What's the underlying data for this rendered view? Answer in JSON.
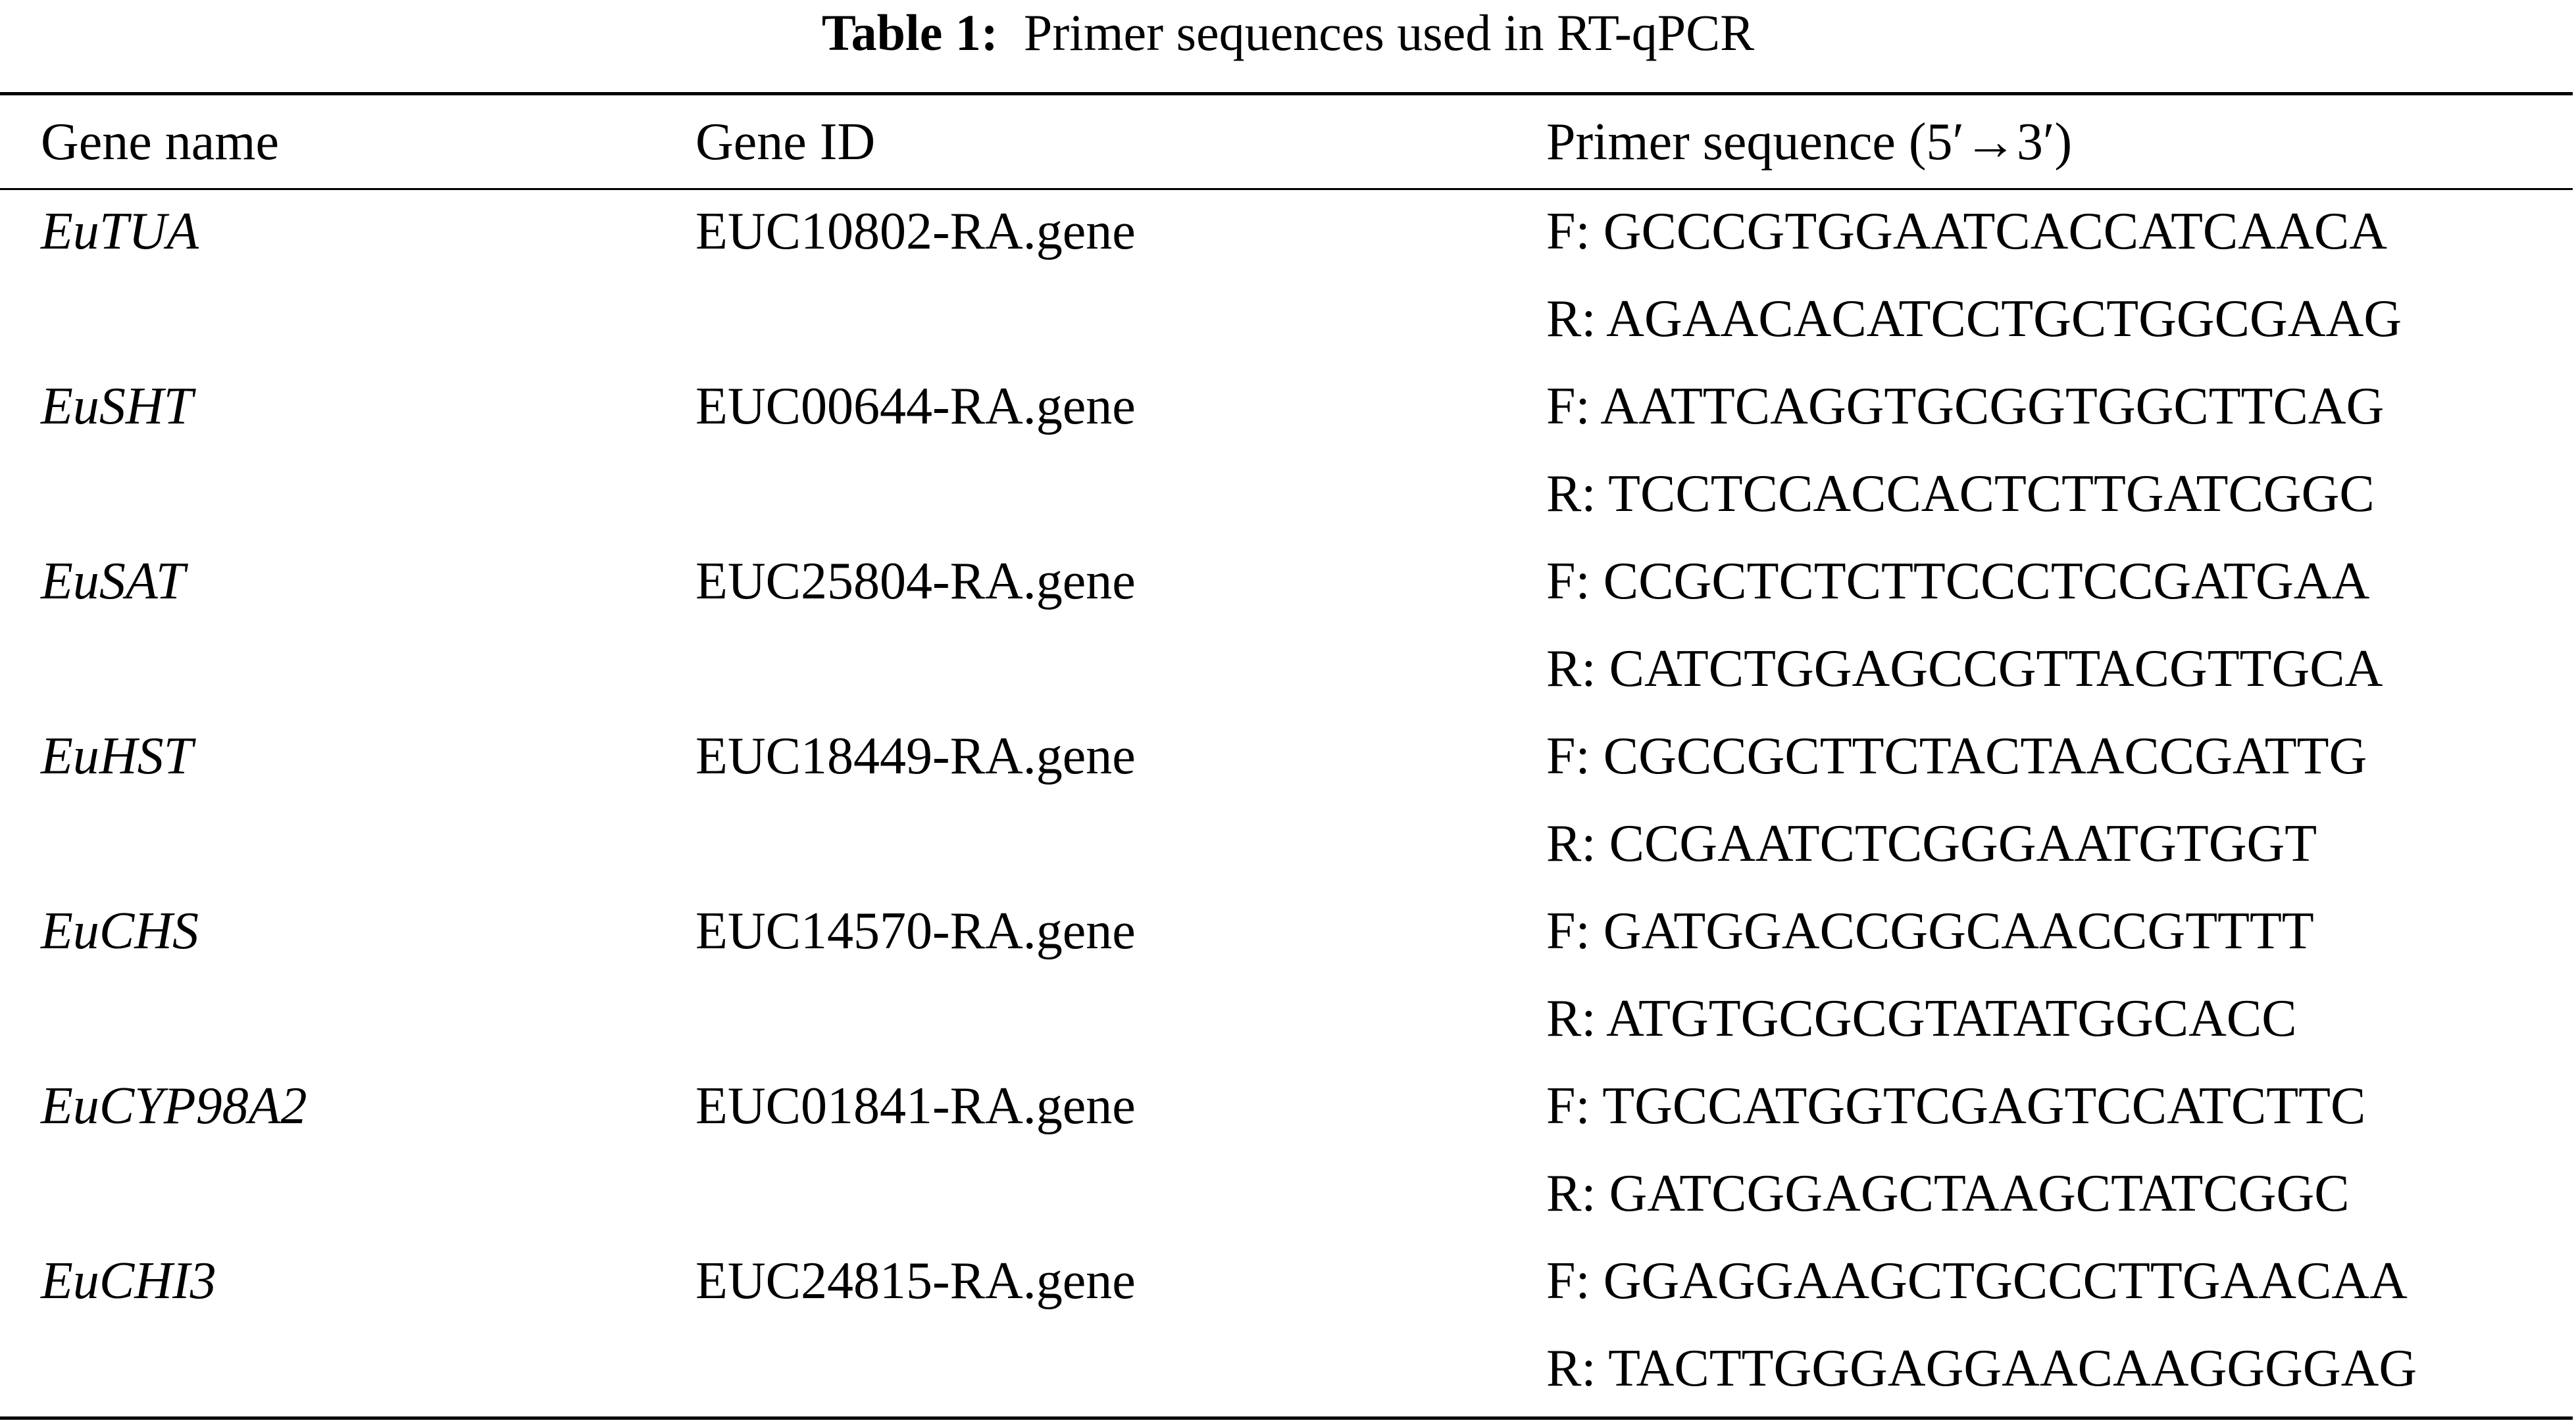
{
  "caption": {
    "label": "Table 1:",
    "text": "Primer sequences used in RT-qPCR"
  },
  "headers": [
    "Gene name",
    "Gene ID",
    "Primer sequence (5′→3′)"
  ],
  "rows": [
    {
      "gene": "EuTUA",
      "id": "EUC10802-RA.gene",
      "f": "F: GCCCGTGGAATCACCATCAACA",
      "r": "R: AGAACACATCCTGCTGGCGAAG"
    },
    {
      "gene": "EuSHT",
      "id": "EUC00644-RA.gene",
      "f": "F: AATTCAGGTGCGGTGGCTTCAG",
      "r": "R: TCCTCCACCACTCTTGATCGGC"
    },
    {
      "gene": "EuSAT",
      "id": "EUC25804-RA.gene",
      "f": "F: CCGCTCTCTTCCCTCCGATGAA",
      "r": "R: CATCTGGAGCCGTTACGTTGCA"
    },
    {
      "gene": "EuHST",
      "id": "EUC18449-RA.gene",
      "f": "F: CGCCGCTTCTACTAACCGATTG",
      "r": "R: CCGAATCTCGGGAATGTGGT"
    },
    {
      "gene": "EuCHS",
      "id": "EUC14570-RA.gene",
      "f": "F: GATGGACCGGCAACCGTTTT",
      "r": "R: ATGTGCGCGTATATGGCACC"
    },
    {
      "gene": "EuCYP98A2",
      "id": "EUC01841-RA.gene",
      "f": "F: TGCCATGGTCGAGTCCATCTTC",
      "r": "R: GATCGGAGCTAAGCTATCGGC"
    },
    {
      "gene": "EuCHI3",
      "id": "EUC24815-RA.gene",
      "f": "F: GGAGGAAGCTGCCCTTGAACAA",
      "r": "R: TACTTGGGAGGAACAAGGGGAG"
    }
  ]
}
